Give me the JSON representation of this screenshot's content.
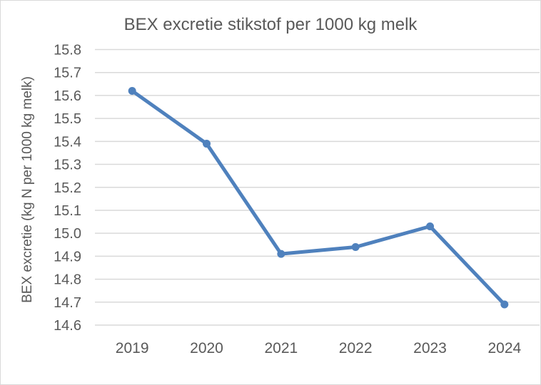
{
  "chart_data": {
    "type": "line",
    "title": "BEX excretie stikstof per 1000 kg melk",
    "xlabel": "",
    "ylabel": "BEX excretie (kg N per 1000 kg melk)",
    "categories": [
      "2019",
      "2020",
      "2021",
      "2022",
      "2023",
      "2024"
    ],
    "series": [
      {
        "name": "BEX excretie stikstof",
        "values": [
          15.62,
          15.39,
          14.91,
          14.94,
          15.03,
          14.69
        ]
      }
    ],
    "ylim": [
      14.6,
      15.8
    ],
    "ytick_step": 0.1,
    "yticks": [
      "15.8",
      "15.7",
      "15.6",
      "15.5",
      "15.4",
      "15.3",
      "15.2",
      "15.1",
      "15.0",
      "14.9",
      "14.8",
      "14.7",
      "14.6"
    ],
    "grid": "horizontal",
    "legend": "none",
    "marker": "circle",
    "colors": {
      "line": "#4F81BD",
      "grid": "#D9D9D9",
      "text": "#595959",
      "border": "#D9D9D9",
      "background": "#FFFFFF"
    }
  }
}
